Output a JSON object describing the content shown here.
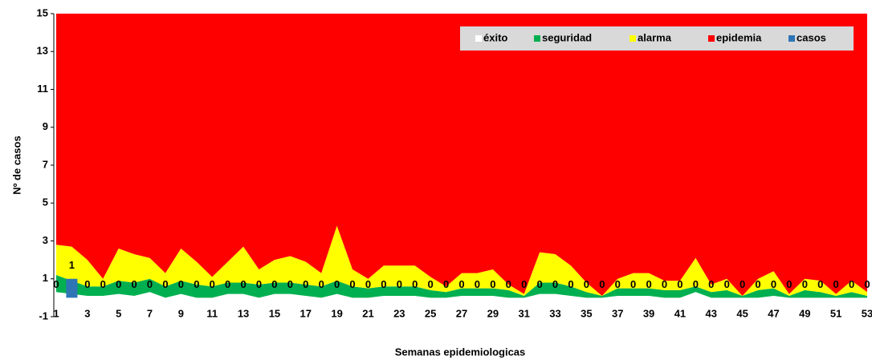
{
  "chart_data": {
    "type": "area",
    "y_label": "Nº de casos",
    "x_label": "Semanas epidemiologicas",
    "categories": [
      1,
      null,
      3,
      null,
      5,
      null,
      7,
      null,
      9,
      null,
      11,
      null,
      13,
      null,
      15,
      null,
      17,
      null,
      19,
      null,
      21,
      null,
      23,
      null,
      25,
      null,
      27,
      null,
      29,
      null,
      31,
      null,
      33,
      null,
      35,
      null,
      37,
      null,
      39,
      null,
      41,
      null,
      43,
      null,
      45,
      null,
      47,
      null,
      49,
      null,
      51,
      null,
      53
    ],
    "ylim": [
      -1,
      15
    ],
    "yticks": [
      -1,
      1,
      3,
      5,
      7,
      9,
      11,
      13,
      15
    ],
    "legend": "top-right",
    "series": [
      {
        "name": "éxito",
        "type": "area",
        "color": "#ffffff",
        "values": [
          0.3,
          0.2,
          0.1,
          0.1,
          0.2,
          0.1,
          0.3,
          0,
          0.2,
          0,
          0,
          0.2,
          0.2,
          0,
          0.2,
          0.2,
          0.1,
          0,
          0.2,
          0,
          0,
          0.1,
          0.1,
          0.1,
          0,
          0,
          0.1,
          0.1,
          0.1,
          0,
          0,
          0.2,
          0.2,
          0.1,
          0,
          0,
          0.1,
          0.1,
          0.1,
          0,
          0,
          0.3,
          0,
          0,
          0,
          0,
          0.1,
          0,
          0,
          0,
          0,
          0,
          0
        ]
      },
      {
        "name": "seguridad",
        "type": "area",
        "color": "#00b050",
        "values": [
          0.9,
          0.7,
          0.5,
          0.5,
          0.7,
          0.7,
          0.7,
          0.6,
          0.7,
          0.7,
          0.6,
          0.6,
          0.6,
          0.7,
          0.6,
          0.6,
          0.6,
          0.6,
          0.7,
          0.6,
          0.5,
          0.5,
          0.5,
          0.5,
          0.4,
          0.3,
          0.4,
          0.4,
          0.4,
          0.4,
          0.1,
          0.6,
          0.6,
          0.5,
          0.3,
          0.1,
          0.4,
          0.4,
          0.4,
          0.4,
          0.4,
          0.3,
          0.3,
          0.4,
          0.1,
          0.4,
          0.4,
          0.1,
          0.4,
          0.3,
          0.1,
          0.3,
          0.1
        ]
      },
      {
        "name": "alarma",
        "type": "area",
        "color": "#ffff00",
        "values": [
          1.6,
          1.8,
          1.4,
          0.4,
          1.7,
          1.5,
          1.1,
          0.7,
          1.7,
          1.2,
          0.5,
          1.1,
          1.9,
          0.8,
          1.2,
          1.4,
          1.2,
          0.7,
          2.9,
          0.9,
          0.5,
          1.1,
          1.1,
          1.1,
          0.7,
          0.3,
          0.8,
          0.8,
          1.0,
          0.3,
          0.1,
          1.6,
          1.5,
          1.1,
          0.5,
          0,
          0.5,
          0.8,
          0.8,
          0.5,
          0.5,
          1.5,
          0.4,
          0.6,
          0,
          0.6,
          0.9,
          0.1,
          0.6,
          0.6,
          0.1,
          0.6,
          0.2
        ]
      },
      {
        "name": "epidemia",
        "type": "area",
        "color": "#ff0000",
        "values": [
          12.2,
          12.3,
          13.0,
          14.0,
          12.4,
          12.7,
          12.9,
          13.7,
          12.4,
          13.1,
          13.9,
          13.1,
          12.3,
          13.5,
          13.0,
          12.8,
          13.1,
          13.7,
          11.2,
          13.5,
          14.0,
          13.3,
          13.3,
          13.3,
          13.9,
          14.4,
          13.7,
          13.7,
          13.5,
          14.3,
          14.8,
          12.6,
          12.7,
          13.3,
          14.2,
          14.9,
          14.0,
          13.7,
          13.7,
          14.1,
          14.1,
          12.9,
          14.3,
          14.0,
          14.9,
          14.0,
          13.6,
          14.8,
          14.0,
          14.1,
          14.8,
          14.1,
          14.7
        ]
      },
      {
        "name": "casos",
        "type": "bar",
        "color": "#2e75b6",
        "values": [
          0,
          1,
          0,
          0,
          0,
          0,
          0,
          0,
          0,
          0,
          0,
          0,
          0,
          0,
          0,
          0,
          0,
          0,
          0,
          0,
          0,
          0,
          0,
          0,
          0,
          0,
          0,
          0,
          0,
          0,
          0,
          0,
          0,
          0,
          0,
          0,
          0,
          0,
          0,
          0,
          0,
          0,
          0,
          0,
          0,
          0,
          0,
          0,
          0,
          0,
          0,
          0,
          0
        ]
      }
    ]
  }
}
